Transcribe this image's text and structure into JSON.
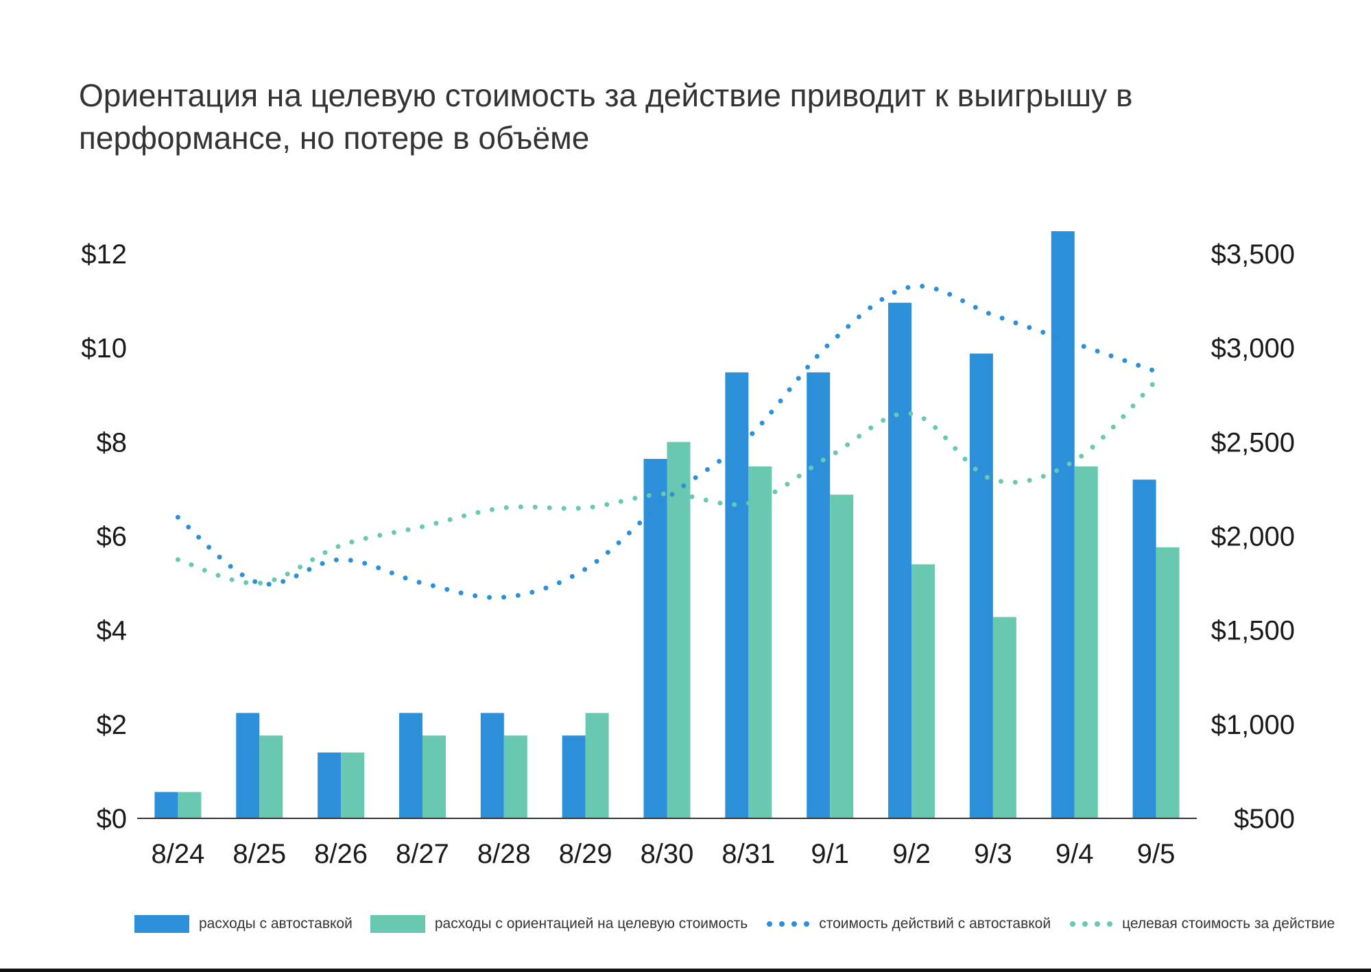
{
  "colors": {
    "autobid": "#2b8fd9",
    "target": "#68c9b0",
    "axis": "#333333"
  },
  "chart_data": {
    "type": "bar",
    "title": "Ориентация на целевую стоимость за действие приводит к выигрышу в перформансе, но потере в объёме",
    "categories": [
      "8/24",
      "8/25",
      "8/26",
      "8/27",
      "8/28",
      "8/29",
      "8/30",
      "8/31",
      "9/1",
      "9/2",
      "9/3",
      "9/4",
      "9/5"
    ],
    "y_left": {
      "ylim": [
        0,
        12
      ],
      "ticks": [
        0,
        2,
        4,
        6,
        8,
        10,
        12
      ],
      "tick_labels": [
        "$0",
        "$2",
        "$4",
        "$6",
        "$8",
        "$10",
        "$12"
      ]
    },
    "y_right": {
      "ylim": [
        500,
        3500
      ],
      "ticks": [
        500,
        1000,
        1500,
        2000,
        2500,
        3000,
        3500
      ],
      "tick_labels": [
        "$500",
        "$1,000",
        "$1,500",
        "$2,000",
        "$2,500",
        "$3,000",
        "$3,500"
      ]
    },
    "series": [
      {
        "name": "расходы с автоставкой",
        "type": "bar",
        "axis": "right",
        "color": "#2b8fd9",
        "values": [
          640,
          1060,
          850,
          1060,
          1060,
          940,
          2410,
          2870,
          2870,
          3240,
          2970,
          3620,
          2300
        ]
      },
      {
        "name": "расходы с ориентацией на целевую стоимость",
        "type": "bar",
        "axis": "right",
        "color": "#68c9b0",
        "values": [
          640,
          940,
          850,
          940,
          940,
          1060,
          2500,
          2370,
          2220,
          1850,
          1570,
          2370,
          1940
        ]
      },
      {
        "name": "стоимость действий с автоставкой",
        "type": "line",
        "style": "dotted",
        "axis": "left",
        "color": "#2b8fd9",
        "values": [
          6.4,
          5.0,
          5.5,
          5.0,
          4.7,
          5.3,
          6.8,
          8.1,
          10.1,
          11.3,
          10.7,
          10.1,
          9.5
        ]
      },
      {
        "name": "целевая стоимость за действие",
        "type": "line",
        "style": "dotted",
        "axis": "left",
        "color": "#68c9b0",
        "values": [
          5.5,
          5.0,
          5.8,
          6.2,
          6.6,
          6.6,
          6.9,
          6.7,
          7.7,
          8.6,
          7.2,
          7.6,
          9.3
        ]
      }
    ],
    "grid": false,
    "legend_position": "bottom"
  }
}
